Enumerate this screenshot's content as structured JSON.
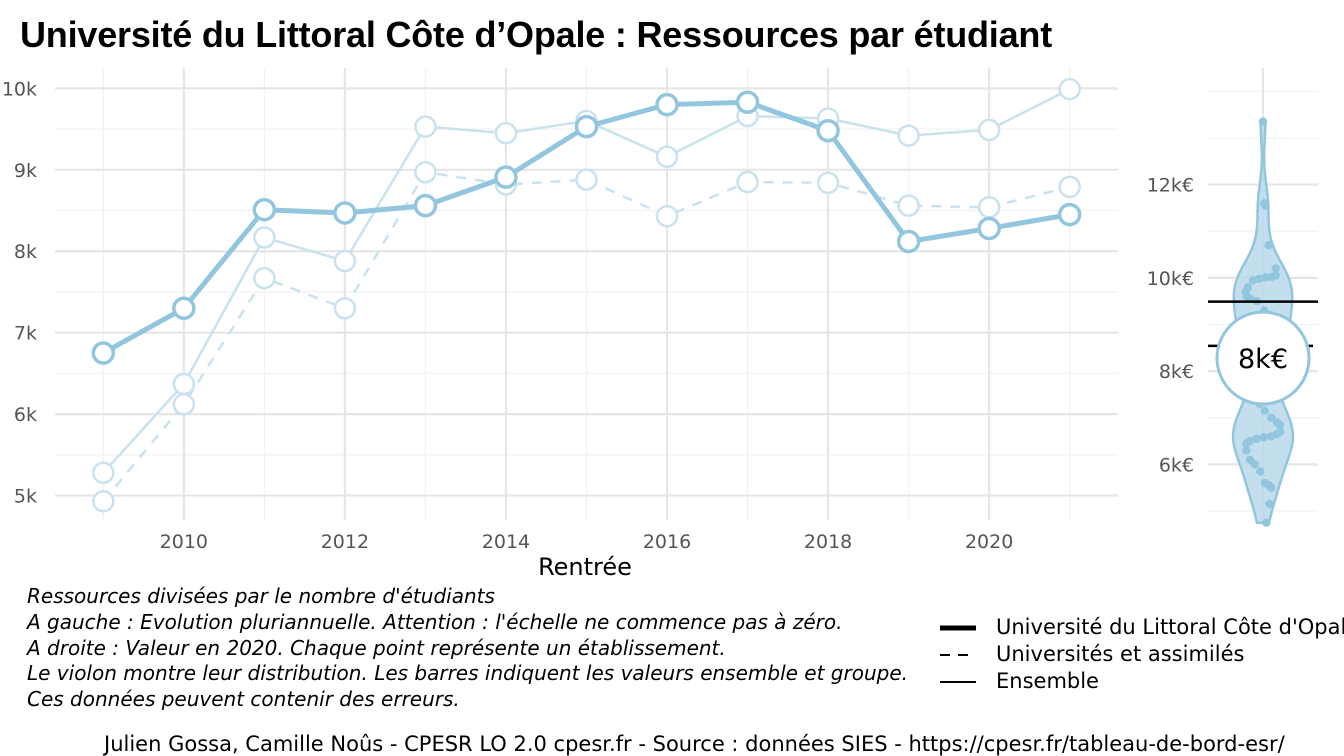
{
  "title": "Université du Littoral Côte d’Opale  :  Ressources par étudiant",
  "chart_data": [
    {
      "type": "line",
      "xlabel": "Rentrée",
      "ylabel": "",
      "x": [
        2009,
        2010,
        2011,
        2012,
        2013,
        2014,
        2015,
        2016,
        2017,
        2018,
        2019,
        2020,
        2021
      ],
      "x_ticks": [
        "2010",
        "2012",
        "2014",
        "2016",
        "2018",
        "2020"
      ],
      "x_tick_values": [
        2010,
        2012,
        2014,
        2016,
        2018,
        2020
      ],
      "y_ticks": [
        "5k",
        "6k",
        "7k",
        "8k",
        "9k",
        "10k"
      ],
      "y_tick_values": [
        5000,
        6000,
        7000,
        8000,
        9000,
        10000
      ],
      "xlim": [
        2008.4,
        2021.6
      ],
      "ylim": [
        4700,
        10250
      ],
      "grid": true,
      "series": [
        {
          "name": "Université du Littoral Côte d'Opale",
          "style": "thick-solid",
          "values": [
            6750,
            7300,
            8510,
            8470,
            8560,
            8910,
            9530,
            9800,
            9830,
            9480,
            8120,
            8280,
            8450
          ]
        },
        {
          "name": "Universités et assimilés",
          "style": "dashed",
          "values": [
            4930,
            6120,
            7670,
            7300,
            8970,
            8820,
            8880,
            8430,
            8850,
            8840,
            8560,
            8540,
            8790
          ]
        },
        {
          "name": "Ensemble",
          "style": "thin-solid",
          "values": [
            5280,
            6370,
            8170,
            7880,
            9530,
            9450,
            9600,
            9160,
            9660,
            9630,
            9420,
            9490,
            9990
          ]
        }
      ],
      "color": "#92c5de"
    },
    {
      "type": "violin",
      "y_ticks": [
        "6k€",
        "8k€",
        "10k€",
        "12k€"
      ],
      "y_tick_values": [
        6000,
        8000,
        10000,
        12000
      ],
      "ylim": [
        4700,
        14500
      ],
      "highlight_label": "8k€",
      "highlight_value": 8280,
      "ensemble_line": 9490,
      "group_line": 8540,
      "points": [
        13350,
        11600,
        11550,
        10700,
        10200,
        10050,
        10020,
        10010,
        9980,
        9950,
        9800,
        9700,
        9600,
        9550,
        9500,
        9300,
        9200,
        9100,
        9000,
        8900,
        8800,
        8700,
        8600,
        8500,
        8400,
        8200,
        8000,
        7800,
        7500,
        7300,
        7150,
        7000,
        6900,
        6850,
        6700,
        6650,
        6600,
        6580,
        6550,
        6500,
        6450,
        6300,
        6100,
        6000,
        5850,
        5600,
        5550,
        5500,
        5150,
        4750
      ],
      "color": "#92c5de",
      "fill": "#b9d9ea"
    }
  ],
  "notes": [
    "Ressources divisées par le nombre d'étudiants",
    "A gauche : Evolution pluriannuelle. Attention : l'échelle ne commence pas à zéro.",
    "A droite : Valeur en 2020. Chaque point représente un établissement.",
    "Le violon montre leur distribution. Les barres indiquent les valeurs ensemble et groupe.",
    "Ces données peuvent contenir des erreurs."
  ],
  "legend": [
    {
      "label": "Université du Littoral Côte d'Opale",
      "style": "thick-solid"
    },
    {
      "label": "Universités et assimilés",
      "style": "dashed"
    },
    {
      "label": "Ensemble",
      "style": "thin-solid"
    }
  ],
  "caption": "Julien Gossa, Camille Noûs - CPESR LO 2.0 cpesr.fr - Source : données SIES - https://cpesr.fr/tableau-de-bord-esr/"
}
